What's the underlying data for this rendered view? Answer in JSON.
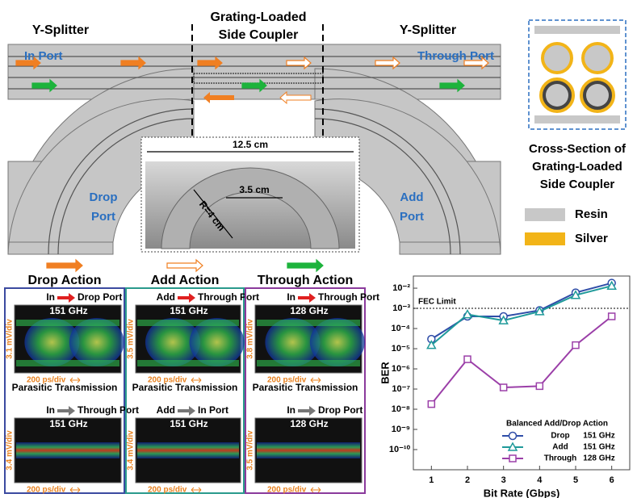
{
  "diagram": {
    "section_titles": [
      [
        "Y-Splitter"
      ],
      [
        "Grating-Loaded",
        "Side Coupler"
      ],
      [
        "Y-Splitter"
      ]
    ],
    "ports": [
      [
        "In Port"
      ],
      [
        "Through Port"
      ],
      [
        "Drop",
        "Port"
      ],
      [
        "Add",
        "Port"
      ]
    ],
    "photo_dims": [
      "12.5 cm",
      "3.5 cm",
      "R=4 cm"
    ],
    "cross_section_title": [
      "Cross-Section of",
      "Grating-Loaded",
      "Side Coupler"
    ],
    "legend": [
      {
        "name": "Resin",
        "color": "#c8c8c8"
      },
      {
        "name": "Silver",
        "color": "#f2b418"
      }
    ]
  },
  "eye_panels": [
    {
      "action": "Drop Action",
      "color": "#3b4aa0",
      "top": {
        "route": [
          "In",
          "Drop Port"
        ],
        "freq": "151 GHz",
        "yscale": "3.1 mV/div",
        "xscale": "200 ps/div"
      },
      "bottom": {
        "heading": "Parasitic Transmission",
        "route": [
          "In",
          "Through Port"
        ],
        "freq": "151 GHz",
        "yscale": "3.4 mV/div",
        "xscale": "200 ps/div"
      }
    },
    {
      "action": "Add Action",
      "color": "#2a9a8c",
      "top": {
        "route": [
          "Add",
          "Through Port"
        ],
        "freq": "151 GHz",
        "yscale": "3.5 mV/div",
        "xscale": "200 ps/div"
      },
      "bottom": {
        "heading": "Parasitic Transmission",
        "route": [
          "Add",
          "In Port"
        ],
        "freq": "151 GHz",
        "yscale": "3.4 mV/div",
        "xscale": "200 ps/div"
      }
    },
    {
      "action": "Through Action",
      "color": "#8a3a9c",
      "top": {
        "route": [
          "In",
          "Through Port"
        ],
        "freq": "128 GHz",
        "yscale": "3.8 mV/div",
        "xscale": "200 ps/div"
      },
      "bottom": {
        "heading": "Parasitic Transmission",
        "route": [
          "In",
          "Drop Port"
        ],
        "freq": "128 GHz",
        "yscale": "3.5 mV/div",
        "xscale": "200 ps/div"
      }
    }
  ],
  "chart_data": {
    "type": "line",
    "x_label": "Bit Rate (Gbps)",
    "y_label": "BER",
    "log_y": true,
    "x": [
      1,
      2,
      3,
      4,
      5,
      6
    ],
    "xlim": [
      0.5,
      6.5
    ],
    "xticks": [
      1,
      2,
      3,
      4,
      5,
      6
    ],
    "ylim": [
      1e-11,
      0.04
    ],
    "yticks": [
      {
        "value": 0.01,
        "label": "10⁻²"
      },
      {
        "value": 0.001,
        "label": "10⁻³"
      },
      {
        "value": 0.0001,
        "label": "10⁻⁴"
      },
      {
        "value": 1e-05,
        "label": "10⁻⁵"
      },
      {
        "value": 1e-06,
        "label": "10⁻⁶"
      },
      {
        "value": 1e-07,
        "label": "10⁻⁷"
      },
      {
        "value": 1e-08,
        "label": "10⁻⁸"
      },
      {
        "value": 1e-09,
        "label": "10⁻⁹"
      },
      {
        "value": 1e-10,
        "label": "10⁻¹⁰"
      }
    ],
    "fec_limit": {
      "value": 0.001,
      "label": "FEC Limit"
    },
    "legend_title": "Balanced Add/Drop Action",
    "series": [
      {
        "name": "Drop",
        "note": "151 GHz",
        "color": "#2f4da8",
        "marker": "o",
        "values": [
          3e-05,
          0.0004,
          0.0004,
          0.0008,
          0.006,
          0.018
        ]
      },
      {
        "name": "Add",
        "note": "151 GHz",
        "color": "#1f9a9a",
        "marker": "^",
        "values": [
          1.5e-05,
          0.0005,
          0.00025,
          0.0007,
          0.0045,
          0.013
        ]
      },
      {
        "name": "Through",
        "note": "128 GHz",
        "color": "#9b3fa8",
        "marker": "s",
        "values": [
          1.8e-08,
          3e-06,
          1.2e-07,
          1.4e-07,
          1.5e-05,
          0.0004
        ]
      }
    ]
  }
}
